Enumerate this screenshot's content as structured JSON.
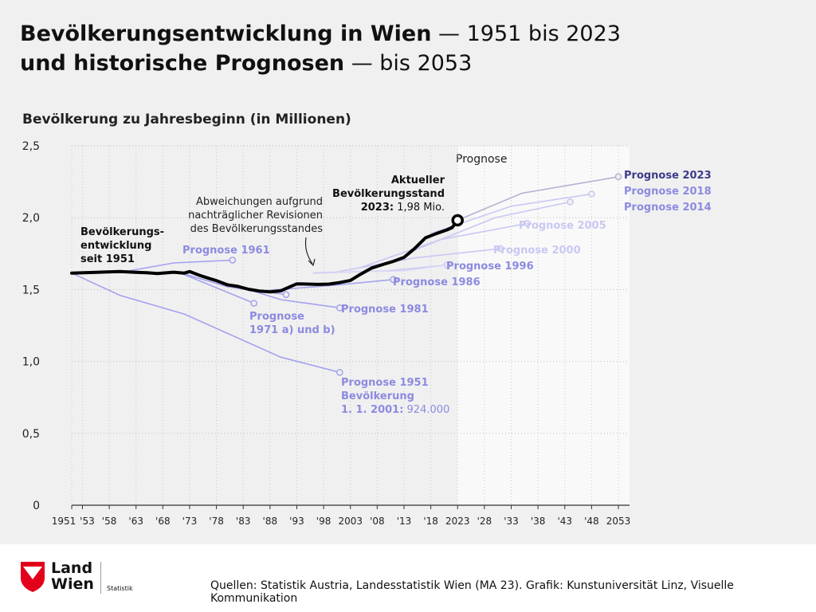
{
  "header": {
    "title_line1_bold": "Bevölkerungsentwicklung in Wien",
    "title_line1_light": " — 1951 bis 2023",
    "title_line2_bold": "und historische Prognosen",
    "title_line2_light": " — bis 2053",
    "subtitle": "Bevölkerung zu Jahresbeginn (in Millionen)"
  },
  "footer": {
    "logo_line1": "Land",
    "logo_line2": "Wien",
    "logo_sub": "Statistik",
    "source": "Quellen: Statistik Austria, Landesstatistik Wien (MA 23). Grafik: Kunstuniversität Linz, Visuelle Kommunikation"
  },
  "colors": {
    "actual": "#000000",
    "historic": "#a4a2ee",
    "recent": "#8c8ae0",
    "p2023": "#3d3b87",
    "forecast_bg": "#f9f9f9",
    "bg": "#f0f0f0"
  },
  "chart_data": {
    "type": "line",
    "title": "Bevölkerungsentwicklung in Wien — 1951 bis 2023 und historische Prognosen — bis 2053",
    "ylabel": "Bevölkerung zu Jahresbeginn (in Millionen)",
    "xlim": [
      1951,
      2053
    ],
    "ylim": [
      0,
      2.5
    ],
    "y_ticks": [
      0,
      0.5,
      1.0,
      1.5,
      2.0,
      2.5
    ],
    "y_tick_labels": [
      "0",
      "0,5",
      "1,0",
      "1,5",
      "2,0",
      "2,5"
    ],
    "x_tick_labels": [
      {
        "year": 1951,
        "label": "1951"
      },
      {
        "year": 1953,
        "label": "'53"
      },
      {
        "year": 1958,
        "label": "'58"
      },
      {
        "year": 1963,
        "label": "'63"
      },
      {
        "year": 1968,
        "label": "'68"
      },
      {
        "year": 1973,
        "label": "'73"
      },
      {
        "year": 1978,
        "label": "'78"
      },
      {
        "year": 1983,
        "label": "'83"
      },
      {
        "year": 1988,
        "label": "'88"
      },
      {
        "year": 1993,
        "label": "'93"
      },
      {
        "year": 1998,
        "label": "'98"
      },
      {
        "year": 2003,
        "label": "2003"
      },
      {
        "year": 2008,
        "label": "'08"
      },
      {
        "year": 2013,
        "label": "'13"
      },
      {
        "year": 2018,
        "label": "'18"
      },
      {
        "year": 2023,
        "label": "2023"
      },
      {
        "year": 2028,
        "label": "'28"
      },
      {
        "year": 2033,
        "label": "'33"
      },
      {
        "year": 2038,
        "label": "'38"
      },
      {
        "year": 2043,
        "label": "'43"
      },
      {
        "year": 2048,
        "label": "'48"
      },
      {
        "year": 2053,
        "label": "2053"
      }
    ],
    "grid": true,
    "forecast_region": {
      "from": 2023,
      "to": 2053,
      "label": "Prognose"
    },
    "actual": {
      "name": "Bevölkerungs- entwicklung seit 1951",
      "x": [
        1951,
        1955,
        1960,
        1963,
        1965,
        1967,
        1970,
        1972,
        1973,
        1975,
        1977,
        1978,
        1980,
        1982,
        1984,
        1986,
        1988,
        1990,
        1992,
        1993,
        1995,
        1997,
        1999,
        2001,
        2003,
        2005,
        2007,
        2009,
        2011,
        2013,
        2015,
        2017,
        2019,
        2021,
        2022,
        2023
      ],
      "y": [
        1.615,
        1.619,
        1.626,
        1.62,
        1.617,
        1.612,
        1.621,
        1.615,
        1.625,
        1.597,
        1.573,
        1.562,
        1.534,
        1.522,
        1.502,
        1.49,
        1.484,
        1.491,
        1.524,
        1.54,
        1.538,
        1.536,
        1.538,
        1.549,
        1.564,
        1.609,
        1.65,
        1.674,
        1.696,
        1.724,
        1.786,
        1.86,
        1.889,
        1.915,
        1.932,
        1.982
      ]
    },
    "annotations": [
      {
        "label_bold": "Aktueller Bevölkerungsstand 2023:",
        "label": "1,98 Mio.",
        "x": 2023,
        "y": 1.982
      },
      {
        "label": "Abweichungen aufgrund nachträglicher Revisionen des Bevölkerungsstandes",
        "x": 1997,
        "y": 1.65
      }
    ],
    "series": [
      {
        "name": "Prognose 1951",
        "note": "Bevölkerung 1. 1. 2001: 924.000",
        "x": [
          1951,
          1960,
          1972,
          1990,
          2001
        ],
        "y": [
          1.615,
          1.46,
          1.33,
          1.03,
          0.924
        ]
      },
      {
        "name": "Prognose 1961",
        "x": [
          1961,
          1970,
          1981
        ],
        "y": [
          1.626,
          1.685,
          1.705
        ]
      },
      {
        "name": "Prognose 1971 a) und b)",
        "x": [
          1971,
          1985
        ],
        "y": [
          1.62,
          1.405
        ]
      },
      {
        "name": "Prognose 1971 a) und b)",
        "x": [
          1971,
          1980,
          1991
        ],
        "y": [
          1.62,
          1.52,
          1.465
        ]
      },
      {
        "name": "Prognose 1981",
        "x": [
          1981,
          1990,
          2001
        ],
        "y": [
          1.534,
          1.43,
          1.373
        ]
      },
      {
        "name": "Prognose 1986",
        "x": [
          1986,
          2000,
          2011
        ],
        "y": [
          1.49,
          1.53,
          1.57
        ]
      },
      {
        "name": "Prognose 1996",
        "x": [
          1996,
          2010,
          2021
        ],
        "y": [
          1.615,
          1.63,
          1.67
        ]
      },
      {
        "name": "Prognose 2000",
        "x": [
          2000,
          2015,
          2031
        ],
        "y": [
          1.62,
          1.72,
          1.785
        ]
      },
      {
        "name": "Prognose 2005",
        "x": [
          2005,
          2020,
          2036
        ],
        "y": [
          1.655,
          1.85,
          1.96
        ]
      },
      {
        "name": "Prognose 2014",
        "x": [
          2014,
          2030,
          2044
        ],
        "y": [
          1.76,
          2.0,
          2.11
        ]
      },
      {
        "name": "Prognose 2018",
        "x": [
          2018,
          2033,
          2048
        ],
        "y": [
          1.89,
          2.08,
          2.165
        ]
      },
      {
        "name": "Prognose 2023",
        "x": [
          2023,
          2035,
          2053
        ],
        "y": [
          1.982,
          2.17,
          2.285
        ]
      }
    ],
    "legend": [
      "Prognose 2023",
      "Prognose 2018",
      "Prognose 2014"
    ],
    "legend_placement": "right"
  }
}
